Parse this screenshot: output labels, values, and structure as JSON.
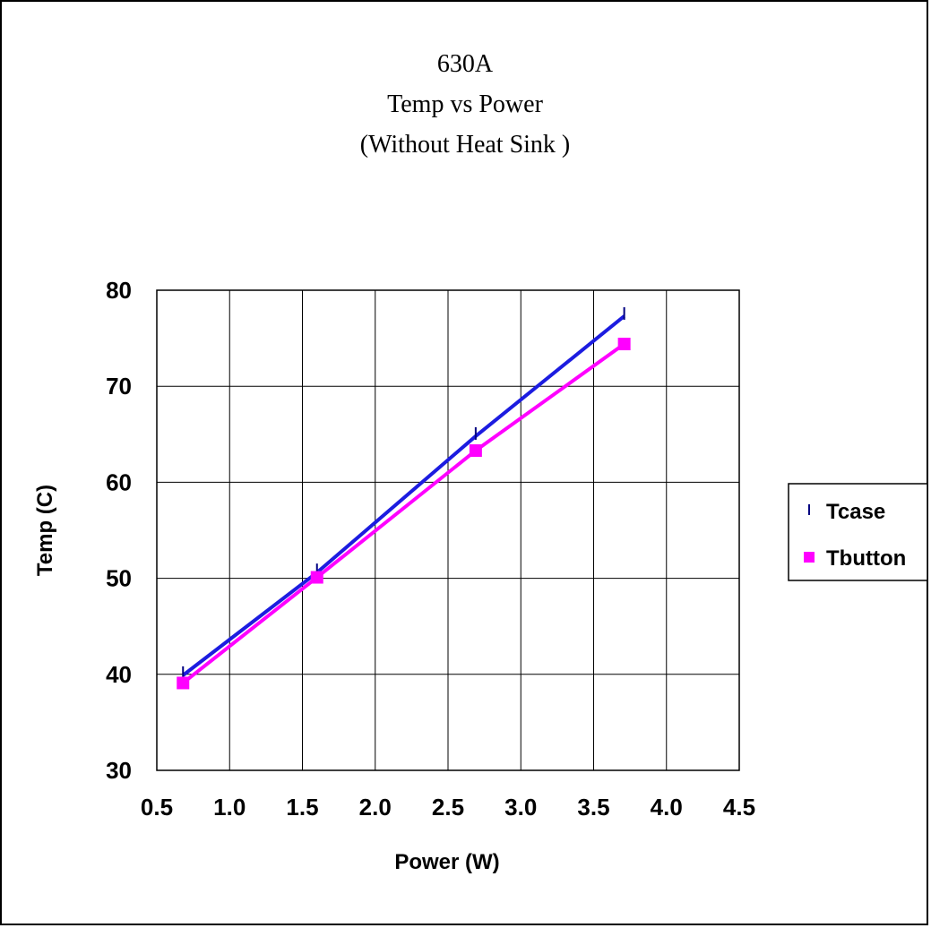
{
  "chart_data": {
    "type": "line",
    "title_lines": [
      "630A",
      "Temp vs Power",
      "(Without Heat Sink )"
    ],
    "xlabel": "Power (W)",
    "ylabel": "Temp (C)",
    "xlim": [
      0.5,
      4.5
    ],
    "ylim": [
      30,
      80
    ],
    "x_ticks": [
      "0.5",
      "1.0",
      "1.5",
      "2.0",
      "2.5",
      "3.0",
      "3.5",
      "4.0",
      "4.5"
    ],
    "y_ticks": [
      "80",
      "70",
      "60",
      "50",
      "40",
      "30"
    ],
    "grid": true,
    "legend_position": "right",
    "series": [
      {
        "name": "Tcase",
        "color": "#1c1ce0",
        "marker": "tick",
        "x": [
          0.68,
          1.6,
          2.69,
          3.71
        ],
        "y": [
          39.9,
          50.6,
          64.8,
          77.3
        ]
      },
      {
        "name": "Tbutton",
        "color": "#ff00ff",
        "marker": "square",
        "x": [
          0.68,
          1.6,
          2.69,
          3.71
        ],
        "y": [
          39.1,
          50.1,
          63.3,
          74.4
        ]
      }
    ]
  }
}
